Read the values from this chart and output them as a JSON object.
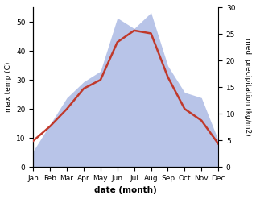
{
  "months": [
    "Jan",
    "Feb",
    "Mar",
    "Apr",
    "May",
    "Jun",
    "Jul",
    "Aug",
    "Sep",
    "Oct",
    "Nov",
    "Dec"
  ],
  "temp_max": [
    9,
    14,
    20,
    27,
    30,
    43,
    47,
    46,
    31,
    20,
    16,
    8
  ],
  "precipitation": [
    3,
    8,
    13,
    16,
    18,
    28,
    26,
    29,
    19,
    14,
    13,
    5
  ],
  "temp_color": "#c0392b",
  "precip_fill_color": "#b8c4e8",
  "temp_ylim": [
    0,
    55
  ],
  "precip_ylim": [
    0,
    30
  ],
  "temp_yticks": [
    0,
    10,
    20,
    30,
    40,
    50
  ],
  "precip_yticks": [
    0,
    5,
    10,
    15,
    20,
    25,
    30
  ],
  "xlabel": "date (month)",
  "ylabel_left": "max temp (C)",
  "ylabel_right": "med. precipitation (kg/m2)",
  "fig_width": 3.18,
  "fig_height": 2.47,
  "dpi": 100
}
